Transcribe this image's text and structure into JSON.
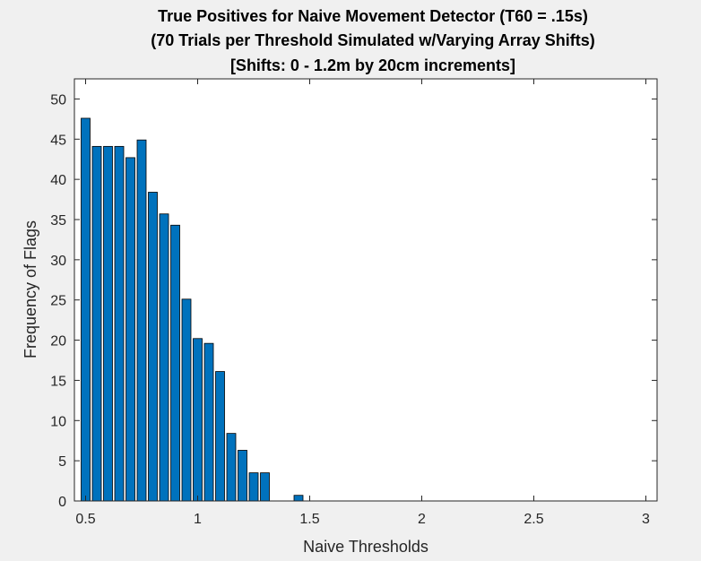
{
  "chart_data": {
    "type": "bar",
    "title": [
      "True Positives for Naive Movement Detector (T60 = .15s)",
      "(70 Trials per Threshold Simulated w/Varying Array Shifts)",
      "[Shifts: 0 - 1.2m by 20cm increments]"
    ],
    "xlabel": "Naive Thresholds",
    "ylabel": "Frequency of Flags",
    "xlim": [
      0.45,
      3.05
    ],
    "ylim": [
      0,
      52.5
    ],
    "xticks": [
      0.5,
      1,
      1.5,
      2,
      2.5,
      3
    ],
    "xtick_labels": [
      "0.5",
      "1",
      "1.5",
      "2",
      "2.5",
      "3"
    ],
    "yticks": [
      0,
      5,
      10,
      15,
      20,
      25,
      30,
      35,
      40,
      45,
      50
    ],
    "ytick_labels": [
      "0",
      "5",
      "10",
      "15",
      "20",
      "25",
      "30",
      "35",
      "40",
      "45",
      "50"
    ],
    "bar_width": 0.04,
    "x": [
      0.5,
      0.55,
      0.6,
      0.65,
      0.7,
      0.75,
      0.8,
      0.85,
      0.9,
      0.95,
      1.0,
      1.05,
      1.1,
      1.15,
      1.2,
      1.25,
      1.3,
      1.35,
      1.4,
      1.45,
      1.5,
      1.55,
      1.6,
      1.65,
      1.7,
      1.75,
      1.8,
      1.85,
      1.9,
      1.95,
      2.0,
      2.05,
      2.1,
      2.15,
      2.2,
      2.25,
      2.3,
      2.35,
      2.4,
      2.45,
      2.5,
      2.55,
      2.6,
      2.65,
      2.7,
      2.75,
      2.8,
      2.85,
      2.9,
      2.95,
      3.0
    ],
    "values": [
      47.6,
      44.1,
      44.1,
      44.1,
      42.7,
      44.9,
      38.4,
      35.7,
      34.3,
      25.1,
      20.2,
      19.6,
      16.1,
      8.4,
      6.3,
      3.5,
      3.5,
      0,
      0,
      0.7,
      0,
      0,
      0,
      0,
      0,
      0,
      0,
      0,
      0,
      0,
      0,
      0,
      0,
      0,
      0,
      0,
      0,
      0,
      0,
      0,
      0,
      0,
      0,
      0,
      0,
      0,
      0,
      0,
      0,
      0,
      0
    ],
    "grid": false,
    "legend": "none",
    "bar_color": "#0072BD",
    "bar_edge_color": "#000000"
  }
}
